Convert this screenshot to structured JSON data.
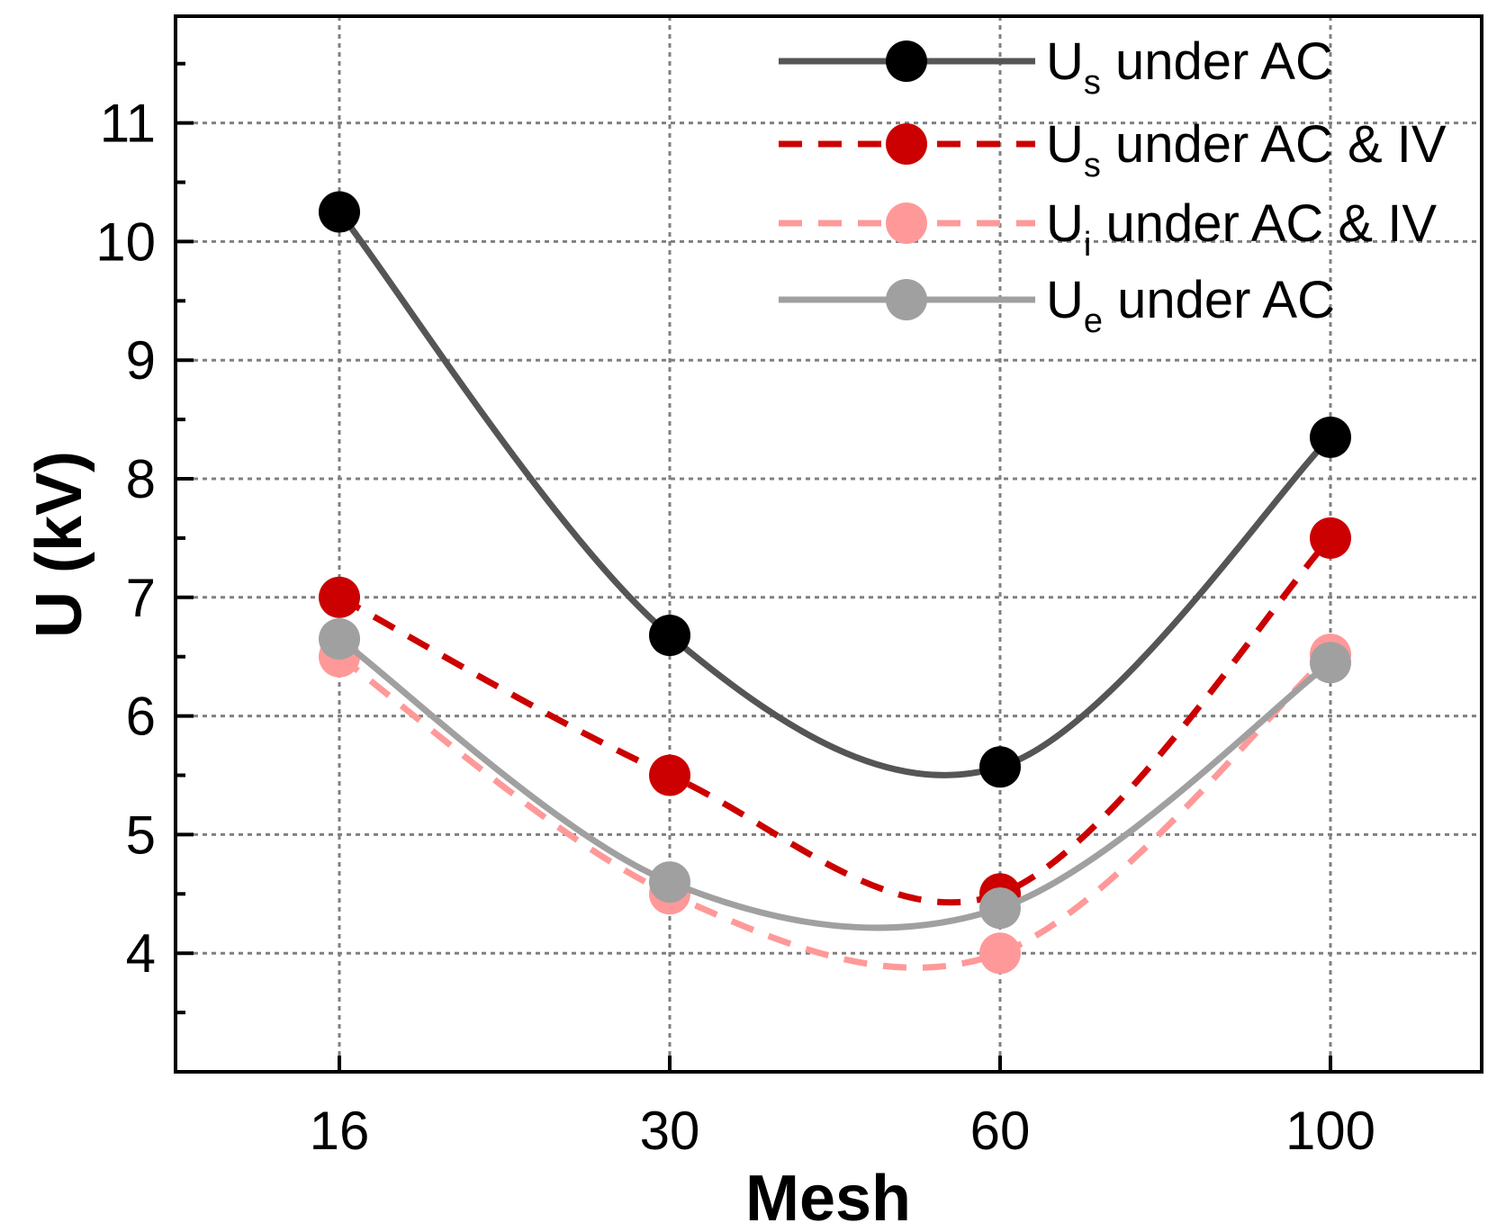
{
  "chart_data": {
    "type": "line",
    "title": "",
    "xlabel": "Mesh",
    "ylabel": "U (kV)",
    "categories": [
      "16",
      "30",
      "60",
      "100"
    ],
    "ylim": [
      3,
      11.9
    ],
    "yticks": [
      4,
      5,
      6,
      7,
      8,
      9,
      10,
      11
    ],
    "grid": true,
    "legend_position": "top-right",
    "series": [
      {
        "name": "Us under AC",
        "label_main": "U",
        "label_sub": "s",
        "label_rest": " under AC",
        "values": [
          10.25,
          6.68,
          5.57,
          8.35
        ],
        "line_color": "#555555",
        "marker_color": "#000000",
        "line_style": "solid"
      },
      {
        "name": "Us under AC & IV",
        "label_main": "U",
        "label_sub": "s",
        "label_rest": " under AC & IV",
        "values": [
          7.0,
          5.5,
          4.5,
          7.5
        ],
        "line_color": "#cc0000",
        "marker_color": "#cc0000",
        "line_style": "dashed"
      },
      {
        "name": "Ui under AC & IV",
        "label_main": "U",
        "label_sub": "i",
        "label_rest": " under AC & IV",
        "values": [
          6.5,
          4.5,
          4.0,
          6.52
        ],
        "line_color": "#ff9999",
        "marker_color": "#ff9999",
        "line_style": "dashed"
      },
      {
        "name": "Ue under AC",
        "label_main": "U",
        "label_sub": "e",
        "label_rest": " under AC",
        "values": [
          6.65,
          4.6,
          4.38,
          6.45
        ],
        "line_color": "#a0a0a0",
        "marker_color": "#a0a0a0",
        "line_style": "solid"
      }
    ]
  }
}
